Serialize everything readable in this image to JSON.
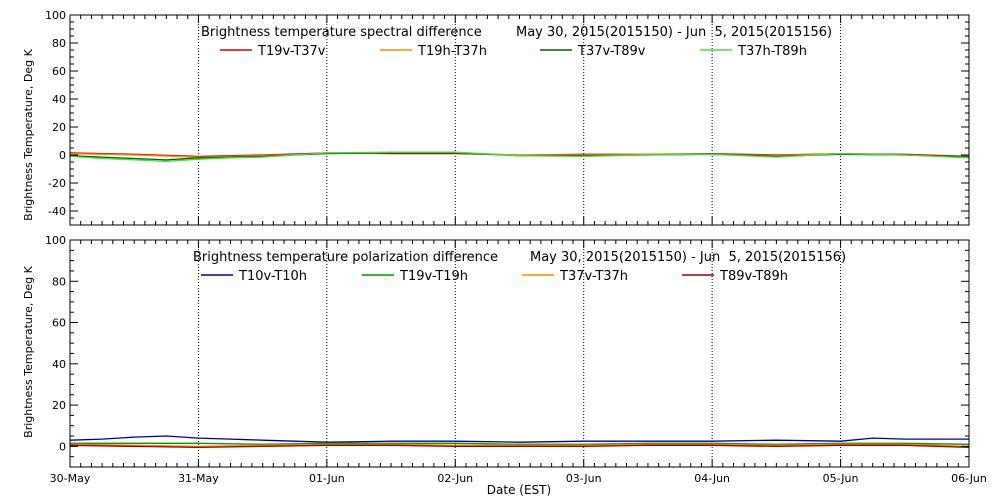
{
  "chart_data": [
    {
      "type": "line",
      "title": "Brightness temperature spectral difference",
      "date_range": "May 30, 2015(2015150) - Jun  5, 2015(2015156)",
      "ylabel": "Brightness Temperature, Deg K",
      "ylim": [
        -50,
        100
      ],
      "yticks": [
        -40,
        -20,
        0,
        20,
        40,
        60,
        80,
        100
      ],
      "xlim": [
        0,
        7
      ],
      "grid": "vertical dotted lines at day boundaries",
      "legend_position": "top",
      "series": [
        {
          "name": "T19v-T37v",
          "color": "#dd0000",
          "x": [
            0,
            0.5,
            1,
            1.5,
            2,
            2.5,
            3,
            3.5,
            4,
            4.5,
            5,
            5.5,
            6,
            6.5,
            7
          ],
          "values": [
            1.5,
            0.5,
            -1,
            0,
            1.5,
            1,
            1,
            0,
            0.5,
            0.5,
            1,
            0,
            1,
            0.5,
            -1
          ]
        },
        {
          "name": "T19h-T37h",
          "color": "#ff8800",
          "x": [
            0,
            0.5,
            1,
            1.5,
            2,
            2.5,
            3,
            3.5,
            4,
            4.5,
            5,
            5.5,
            6,
            6.5,
            7
          ],
          "values": [
            1,
            0,
            -1.5,
            -0.5,
            1,
            1.5,
            1.5,
            0,
            0,
            0.5,
            0.5,
            -0.5,
            1,
            0,
            -1.5
          ]
        },
        {
          "name": "T37v-T89v",
          "color": "#006600",
          "x": [
            0,
            0.25,
            0.5,
            0.75,
            1,
            1.25,
            1.5,
            2,
            2.5,
            3,
            3.5,
            4,
            4.5,
            5,
            5.5,
            6,
            6.5,
            7
          ],
          "values": [
            -0.5,
            -1.5,
            -2.5,
            -3.5,
            -2,
            -1.5,
            -1,
            1,
            1.5,
            1.5,
            -0.5,
            -0.5,
            0,
            0.5,
            -1,
            0.5,
            0,
            -1.5
          ]
        },
        {
          "name": "T37h-T89h",
          "color": "#44dd44",
          "x": [
            0,
            0.25,
            0.5,
            0.75,
            1,
            1.25,
            1.5,
            2,
            2.5,
            3,
            3.5,
            4,
            4.5,
            5,
            5.5,
            6,
            6.5,
            7
          ],
          "values": [
            -1,
            -2.5,
            -3.5,
            -4.5,
            -3,
            -2,
            -1.5,
            1.5,
            2,
            2,
            -0.5,
            -1,
            0,
            0.5,
            -1.5,
            1,
            0,
            -2
          ]
        }
      ]
    },
    {
      "type": "line",
      "title": "Brightness temperature polarization difference",
      "date_range": "May 30, 2015(2015150) - Jun  5, 2015(2015156)",
      "ylabel": "Brightness Temperature, Deg K",
      "xlabel": "Date (EST)",
      "ylim": [
        -10,
        100
      ],
      "yticks": [
        0,
        20,
        40,
        60,
        80,
        100
      ],
      "xlim": [
        0,
        7
      ],
      "xticks": [
        "30-May",
        "31-May",
        "01-Jun",
        "02-Jun",
        "03-Jun",
        "04-Jun",
        "05-Jun",
        "06-Jun"
      ],
      "grid": "vertical dotted lines at day boundaries",
      "legend_position": "top",
      "series": [
        {
          "name": "T10v-T10h",
          "color": "#000099",
          "x": [
            0,
            0.25,
            0.5,
            0.75,
            1,
            1.25,
            1.5,
            2,
            2.5,
            3,
            3.5,
            4,
            4.5,
            5,
            5.5,
            6,
            6.25,
            6.5,
            7
          ],
          "values": [
            3,
            3.5,
            4.5,
            5,
            4,
            3.5,
            3,
            2,
            2.5,
            2.5,
            2,
            2.5,
            2.5,
            2.5,
            3,
            2.5,
            4,
            3.5,
            3.5
          ]
        },
        {
          "name": "T19v-T19h",
          "color": "#009900",
          "x": [
            0,
            0.5,
            1,
            1.5,
            2,
            2.5,
            3,
            3.5,
            4,
            4.5,
            5,
            5.5,
            6,
            6.5,
            7
          ],
          "values": [
            1.5,
            1.5,
            1.5,
            1,
            1.5,
            1.5,
            1.5,
            1,
            1,
            1.5,
            1.5,
            1,
            1.5,
            1.5,
            1
          ]
        },
        {
          "name": "T37v-T37h",
          "color": "#ff8800",
          "x": [
            0,
            0.5,
            1,
            1.5,
            2,
            2.5,
            3,
            3.5,
            4,
            4.5,
            5,
            5.5,
            6,
            6.5,
            7
          ],
          "values": [
            1,
            0.5,
            0,
            0.5,
            1,
            1,
            0.5,
            0.5,
            0.5,
            1,
            1,
            0.5,
            1,
            1,
            0
          ]
        },
        {
          "name": "T89v-T89h",
          "color": "#990000",
          "x": [
            0,
            0.5,
            1,
            1.5,
            2,
            2.5,
            3,
            3.5,
            4,
            4.5,
            5,
            5.5,
            6,
            6.5,
            7
          ],
          "values": [
            0.5,
            0,
            -0.5,
            0,
            0.5,
            0.5,
            0,
            0,
            0,
            0.5,
            0.5,
            0,
            0.5,
            0.5,
            -0.5
          ]
        }
      ]
    }
  ]
}
